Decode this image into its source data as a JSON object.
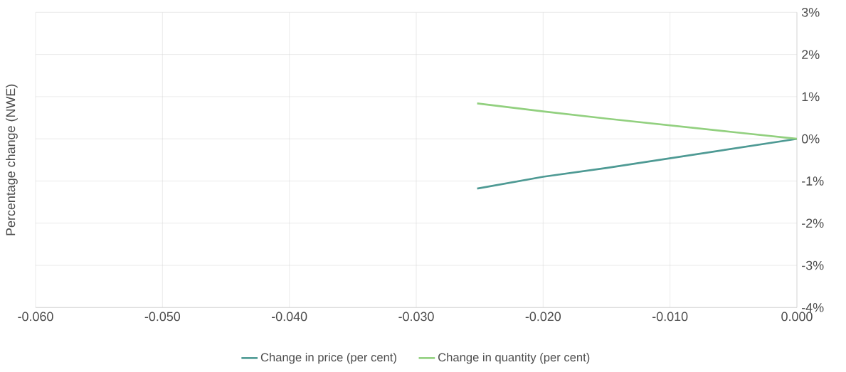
{
  "chart_data": {
    "type": "line",
    "ylabel": "Percentage change (NWE)",
    "xlim": [
      -0.06,
      0
    ],
    "xticks": [
      {
        "value": -0.06,
        "label": "-0.060"
      },
      {
        "value": -0.05,
        "label": "-0.050"
      },
      {
        "value": -0.04,
        "label": "-0.040"
      },
      {
        "value": -0.03,
        "label": "-0.030"
      },
      {
        "value": -0.02,
        "label": "-0.020"
      },
      {
        "value": -0.01,
        "label": "-0.010"
      },
      {
        "value": 0,
        "label": "0.000"
      }
    ],
    "ylim": [
      -4,
      3
    ],
    "yticks": [
      {
        "value": -4,
        "label": "-4%"
      },
      {
        "value": -3,
        "label": "-3%"
      },
      {
        "value": -2,
        "label": "-2%"
      },
      {
        "value": -1,
        "label": "-1%"
      },
      {
        "value": 0,
        "label": "0%"
      },
      {
        "value": 1,
        "label": "1%"
      },
      {
        "value": 2,
        "label": "2%"
      },
      {
        "value": 3,
        "label": "3%"
      }
    ],
    "x": [
      -0.0252,
      -0.02,
      -0.015,
      -0.01,
      -0.005,
      0
    ],
    "series": [
      {
        "name": "Change in price (per cent)",
        "color": "#4e9a94",
        "values": [
          -1.18,
          -0.9,
          -0.69,
          -0.46,
          -0.23,
          0
        ]
      },
      {
        "name": "Change in quantity (per cent)",
        "color": "#92d07f",
        "values": [
          0.84,
          0.65,
          0.48,
          0.32,
          0.16,
          0
        ]
      }
    ],
    "grid": true,
    "legend": "bottom",
    "marker": "none",
    "line_style": "solid"
  }
}
